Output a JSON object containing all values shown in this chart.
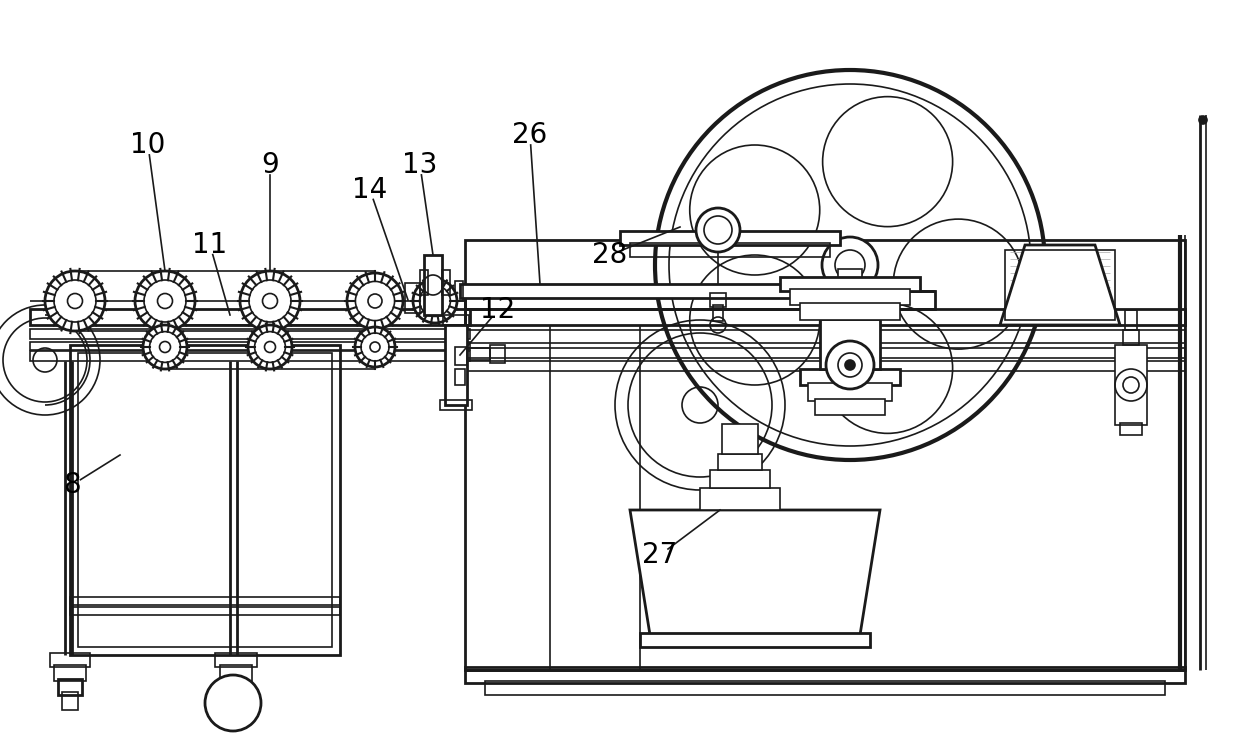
{
  "bg_color": "#ffffff",
  "line_color": "#1a1a1a",
  "lw1": 1.2,
  "lw2": 2.0,
  "lw3": 3.0,
  "label_fontsize": 20
}
